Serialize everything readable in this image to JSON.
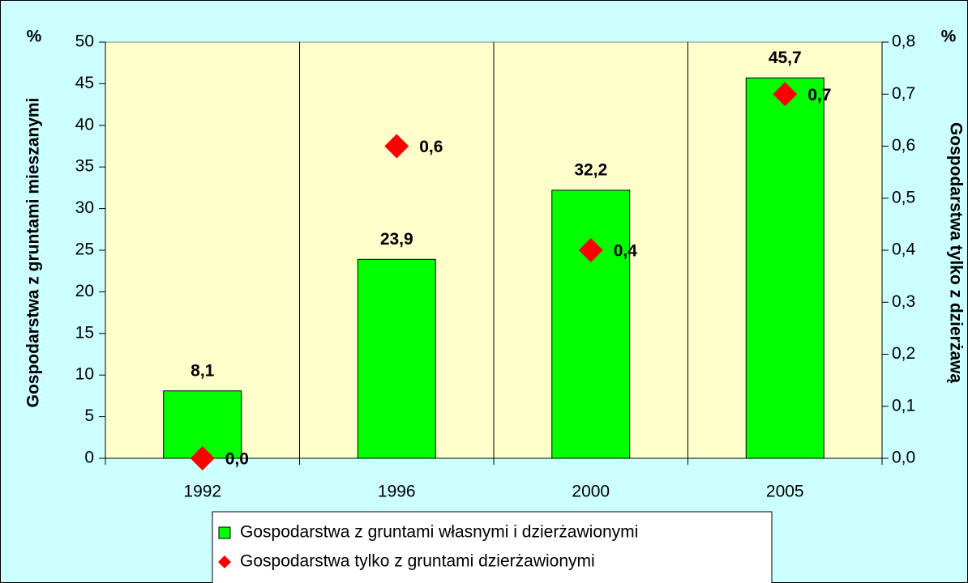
{
  "chart_data": {
    "type": "bar",
    "categories": [
      "1992",
      "1996",
      "2000",
      "2005"
    ],
    "series": [
      {
        "name": "Gospodarstwa z gruntami własnymi i dzierżawionymi",
        "type": "bar",
        "color": "#00ff00",
        "values": [
          8.1,
          23.9,
          32.2,
          45.7
        ],
        "value_labels": [
          "8,1",
          "23,9",
          "32,2",
          "45,7"
        ]
      },
      {
        "name": "Gospodarstwa tylko z gruntami dzierżawionymi",
        "type": "scatter",
        "axis": "y2",
        "color": "#ff0000",
        "values": [
          0.0,
          0.6,
          0.4,
          0.7
        ],
        "value_labels": [
          "0,0",
          "0,6",
          "0,4",
          "0,7"
        ]
      }
    ],
    "y_label": "Gospodarstwa z gruntami mieszanymi",
    "y_unit": "%",
    "y2_label": "Gospodarstwa tylko z dzierżawą",
    "y2_unit": "%",
    "ylim": [
      0,
      50
    ],
    "yticks": [
      0,
      5,
      10,
      15,
      20,
      25,
      30,
      35,
      40,
      45,
      50
    ],
    "y2lim": [
      0,
      0.8
    ],
    "y2ticks": [
      {
        "value": 0,
        "label": "0,0"
      },
      {
        "value": 0.1,
        "label": "0,1"
      },
      {
        "value": 0.2,
        "label": "0,2"
      },
      {
        "value": 0.3,
        "label": "0,3"
      },
      {
        "value": 0.4,
        "label": "0,4"
      },
      {
        "value": 0.5,
        "label": "0,5"
      },
      {
        "value": 0.6,
        "label": "0,6"
      },
      {
        "value": 0.7,
        "label": "0,7"
      },
      {
        "value": 0.8,
        "label": "0,8"
      }
    ],
    "legend": "bottom"
  }
}
